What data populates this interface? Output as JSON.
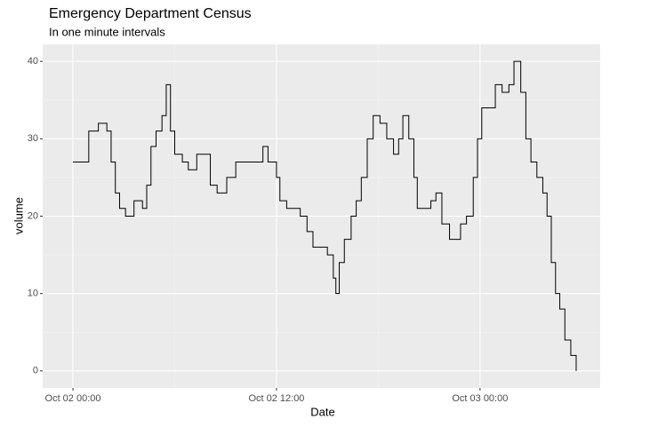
{
  "chart_data": {
    "type": "line",
    "step": "hv",
    "title": "Emergency Department Census",
    "subtitle": "In one minute intervals",
    "x_label": "Date",
    "y_label": "volume",
    "x": [
      "Oct 02 00:00",
      "Oct 02 00:56",
      "Oct 02 01:30",
      "Oct 02 02:00",
      "Oct 02 02:15",
      "Oct 02 02:30",
      "Oct 02 02:45",
      "Oct 02 03:06",
      "Oct 02 03:36",
      "Oct 02 04:06",
      "Oct 02 04:21",
      "Oct 02 04:36",
      "Oct 02 04:54",
      "Oct 02 05:15",
      "Oct 02 05:30",
      "Oct 02 05:45",
      "Oct 02 06:00",
      "Oct 02 06:27",
      "Oct 02 06:48",
      "Oct 02 07:18",
      "Oct 02 07:45",
      "Oct 02 08:06",
      "Oct 02 08:30",
      "Oct 02 09:04",
      "Oct 02 09:36",
      "Oct 02 10:06",
      "Oct 02 10:36",
      "Oct 02 11:12",
      "Oct 02 11:30",
      "Oct 02 12:00",
      "Oct 02 12:12",
      "Oct 02 12:36",
      "Oct 02 13:00",
      "Oct 02 13:24",
      "Oct 02 13:48",
      "Oct 02 14:09",
      "Oct 02 14:36",
      "Oct 02 15:00",
      "Oct 02 15:21",
      "Oct 02 15:30",
      "Oct 02 15:42",
      "Oct 02 16:00",
      "Oct 02 16:24",
      "Oct 02 16:42",
      "Oct 02 17:00",
      "Oct 02 17:21",
      "Oct 02 17:42",
      "Oct 02 18:06",
      "Oct 02 18:30",
      "Oct 02 18:54",
      "Oct 02 19:12",
      "Oct 02 19:27",
      "Oct 02 19:48",
      "Oct 02 20:06",
      "Oct 02 20:18",
      "Oct 02 20:42",
      "Oct 02 21:06",
      "Oct 02 21:24",
      "Oct 02 21:45",
      "Oct 02 22:12",
      "Oct 02 22:30",
      "Oct 02 22:51",
      "Oct 02 23:12",
      "Oct 02 23:36",
      "Oct 02 23:51",
      "Oct 03 00:06",
      "Oct 03 00:30",
      "Oct 03 00:54",
      "Oct 03 01:18",
      "Oct 03 01:42",
      "Oct 03 02:00",
      "Oct 03 02:24",
      "Oct 03 02:42",
      "Oct 03 03:00",
      "Oct 03 03:21",
      "Oct 03 03:42",
      "Oct 03 03:57",
      "Oct 03 04:12",
      "Oct 03 04:27",
      "Oct 03 04:42",
      "Oct 03 05:00",
      "Oct 03 05:21",
      "Oct 03 05:40"
    ],
    "values": [
      27,
      31,
      32,
      31,
      27,
      23,
      21,
      20,
      22,
      21,
      24,
      29,
      31,
      33,
      37,
      31,
      28,
      27,
      26,
      28,
      28,
      24,
      23,
      25,
      27,
      27,
      27,
      29,
      27,
      25,
      22,
      21,
      21,
      20,
      18,
      16,
      16,
      15,
      12,
      10,
      14,
      17,
      20,
      22,
      25,
      30,
      33,
      32,
      30,
      28,
      30,
      33,
      30,
      25,
      21,
      21,
      22,
      23,
      19,
      17,
      17,
      19,
      20,
      25,
      30,
      34,
      34,
      37,
      36,
      37,
      40,
      36,
      30,
      27,
      25,
      23,
      20,
      14,
      10,
      8,
      4,
      2,
      0
    ],
    "color": "#000000",
    "xlim": [
      "Oct 01 22:13",
      "Oct 03 07:05"
    ],
    "xticks": [
      "Oct 02 00:00",
      "Oct 02 12:00",
      "Oct 03 00:00"
    ],
    "xminor": [
      "Oct 02 06:00",
      "Oct 02 18:00"
    ],
    "ylim": [
      -2.2,
      42.2
    ],
    "yticks": [
      0,
      10,
      20,
      30,
      40
    ],
    "yminor": [
      5,
      15,
      25,
      35
    ],
    "grid": true
  }
}
